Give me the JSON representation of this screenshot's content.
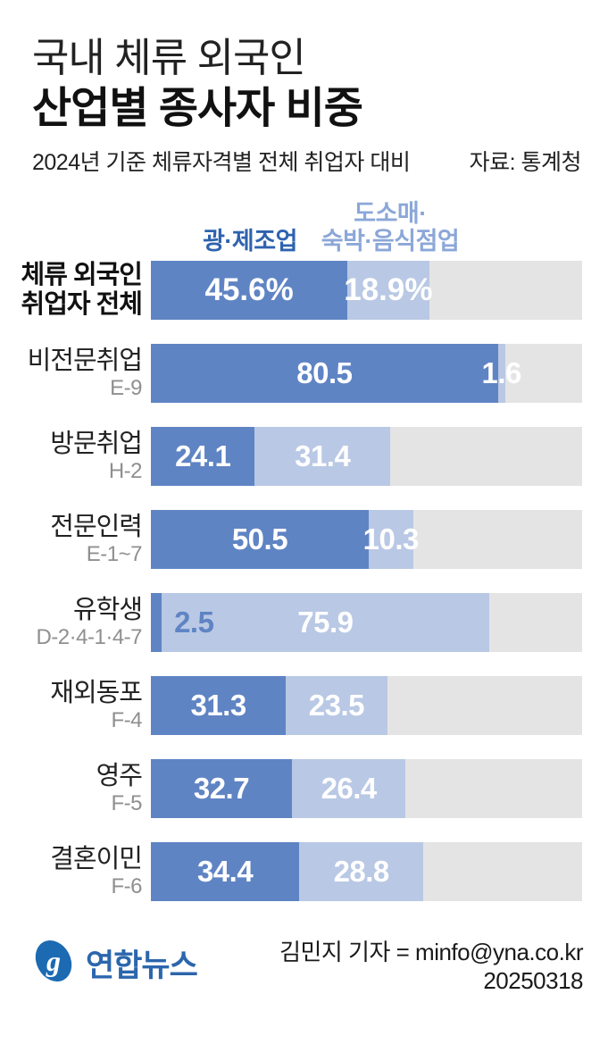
{
  "header": {
    "title_line1": "국내 체류 외국인",
    "title_line2": "산업별 종사자 비중",
    "subtitle": "2024년 기준 체류자격별 전체 취업자 대비",
    "source": "자료: 통계청"
  },
  "legend": {
    "series1_label": "광·제조업",
    "series2_label_line1": "도소매·",
    "series2_label_line2": "숙박·음식점업"
  },
  "colors": {
    "series1": "#5f84c4",
    "series2": "#b9c8e4",
    "track": "#e4e4e5",
    "legend1_text": "#2e62ae",
    "legend2_text": "#8ba7d8",
    "value_text": "#ffffff",
    "value_text_blue": "#5f84c4",
    "brand_blue": "#1c6ab2"
  },
  "chart_data": {
    "type": "bar",
    "subtype": "stacked-horizontal",
    "unit": "%",
    "xlim": [
      0,
      100
    ],
    "title": "국내 체류 외국인 산업별 종사자 비중",
    "subtitle": "2024년 기준 체류자격별 전체 취업자 대비",
    "source": "자료: 통계청",
    "categories": [
      "체류 외국인 취업자 전체",
      "비전문취업",
      "방문취업",
      "전문인력",
      "유학생",
      "재외동포",
      "영주",
      "결혼이민"
    ],
    "category_codes": [
      "",
      "E-9",
      "H-2",
      "E-1~7",
      "D-2·4-1·4-7",
      "F-4",
      "F-5",
      "F-6"
    ],
    "series": [
      {
        "name": "광·제조업",
        "values": [
          45.6,
          80.5,
          24.1,
          50.5,
          2.5,
          31.3,
          32.7,
          34.4
        ]
      },
      {
        "name": "도소매·숙박·음식점업",
        "values": [
          18.9,
          1.6,
          31.4,
          10.3,
          75.9,
          23.5,
          26.4,
          28.8
        ]
      }
    ],
    "legend_position": "top",
    "grid": false
  },
  "rows": [
    {
      "name": "체류 외국인",
      "name_line2": "취업자 전체",
      "code": "",
      "v1": 45.6,
      "v2": 18.9,
      "v1_label": "45.6%",
      "v2_label": "18.9%"
    },
    {
      "name": "비전문취업",
      "code": "E-9",
      "v1": 80.5,
      "v2": 1.6,
      "v1_label": "80.5",
      "v2_label": "1.6"
    },
    {
      "name": "방문취업",
      "code": "H-2",
      "v1": 24.1,
      "v2": 31.4,
      "v1_label": "24.1",
      "v2_label": "31.4"
    },
    {
      "name": "전문인력",
      "code": "E-1~7",
      "v1": 50.5,
      "v2": 10.3,
      "v1_label": "50.5",
      "v2_label": "10.3"
    },
    {
      "name": "유학생",
      "code": "D-2·4-1·4-7",
      "v1": 2.5,
      "v2": 75.9,
      "v1_label": "2.5",
      "v2_label": "75.9"
    },
    {
      "name": "재외동포",
      "code": "F-4",
      "v1": 31.3,
      "v2": 23.5,
      "v1_label": "31.3",
      "v2_label": "23.5"
    },
    {
      "name": "영주",
      "code": "F-5",
      "v1": 32.7,
      "v2": 26.4,
      "v1_label": "32.7",
      "v2_label": "26.4"
    },
    {
      "name": "결혼이민",
      "code": "F-6",
      "v1": 34.4,
      "v2": 28.8,
      "v1_label": "34.4",
      "v2_label": "28.8"
    }
  ],
  "footer": {
    "brand": "연합뉴스",
    "credit": "김민지 기자 = minfo@yna.co.kr",
    "date": "20250318"
  }
}
